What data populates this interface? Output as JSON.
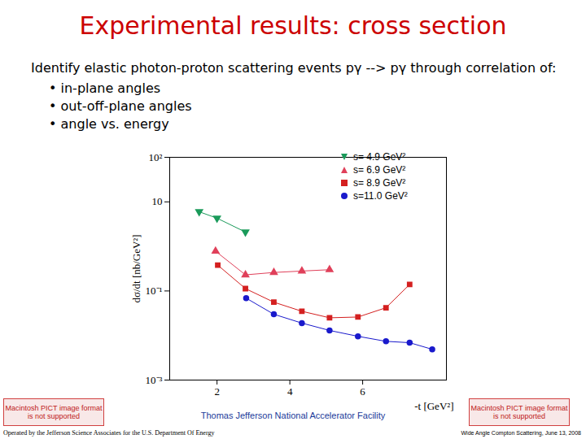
{
  "slide": {
    "title": "Experimental results: cross section",
    "intro": "Identify elastic photon-proton scattering events pγ --> pγ through correlation of:",
    "bullets": [
      "in-plane angles",
      "out-off-plane angles",
      "angle vs. energy"
    ],
    "image_placeholder": "Macintosh PICT image format is not supported",
    "facility": "Thomas Jefferson National Accelerator Facility",
    "operated_by": "Operated by the Jefferson Science Associates for the U.S. Department Of Energy",
    "event": "Wide Angle Compton Scattering, June 13, 2008"
  },
  "chart_data": {
    "type": "line",
    "x_label": "-t [GeV²]",
    "y_label": "dσ/dt [nb/GeV²]",
    "log": "y",
    "grid": false,
    "legend": "top-right",
    "xlim": [
      0.7,
      8.3
    ],
    "xticks": [
      2,
      4,
      6
    ],
    "ylim": [
      0.001,
      100
    ],
    "yticks": [
      {
        "value": 100,
        "label": "10²"
      },
      10,
      {
        "value": 0.1,
        "label": "10⁻¹"
      },
      {
        "value": 0.001,
        "label": "10⁻³"
      }
    ],
    "series": [
      {
        "name": "s= 4.9 GeV²",
        "color": "#1a9a5a",
        "marker": "triangle-down",
        "x": [
          1.51,
          2.0,
          2.78
        ],
        "values": [
          6.0,
          4.3,
          2.1
        ]
      },
      {
        "name": "s= 6.9 GeV²",
        "color": "#e0405a",
        "marker": "triangle",
        "x": [
          1.96,
          2.78,
          3.56,
          4.33,
          5.09
        ],
        "values": [
          0.78,
          0.23,
          0.26,
          0.28,
          0.3
        ]
      },
      {
        "name": "s= 8.9 GeV²",
        "color": "#d42020",
        "marker": "square",
        "x": [
          2.02,
          2.78,
          3.56,
          4.33,
          5.09,
          5.87,
          6.64,
          7.29
        ],
        "values": [
          0.38,
          0.113,
          0.056,
          0.035,
          0.025,
          0.026,
          0.042,
          0.14
        ]
      },
      {
        "name": "s=11.0 GeV²",
        "color": "#1a1acc",
        "marker": "circle",
        "x": [
          2.8,
          3.56,
          4.33,
          5.09,
          5.87,
          6.64,
          7.29,
          7.91
        ],
        "values": [
          0.069,
          0.03,
          0.019,
          0.013,
          0.0096,
          0.0074,
          0.0069,
          0.0049
        ]
      }
    ]
  }
}
